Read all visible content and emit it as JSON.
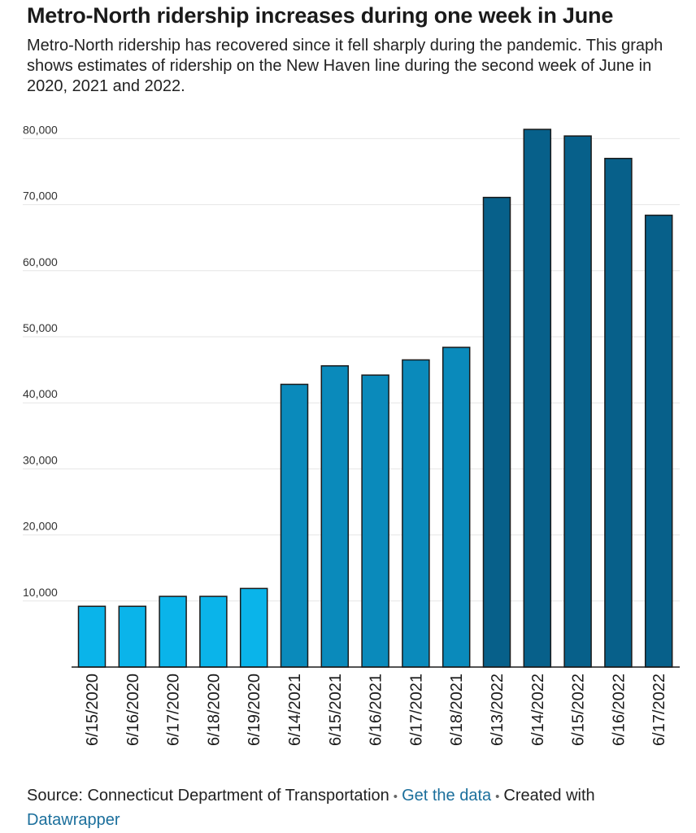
{
  "header": {
    "title": "Metro-North ridership increases during one week in June",
    "subtitle": "Metro-North ridership has recovered since it fell sharply during the pandemic. This graph shows estimates of ridership on the New Haven line during the second week of June in 2020, 2021 and 2022."
  },
  "colors": {
    "bar_2020": "#0ab4ea",
    "bar_2021": "#0a8abb",
    "bar_2022": "#07608a",
    "link": "#1b6f9c"
  },
  "chart_data": {
    "type": "bar",
    "title": "Metro-North ridership increases during one week in June",
    "xlabel": "",
    "ylabel": "",
    "ylim": [
      0,
      82000
    ],
    "yticks": [
      10000,
      20000,
      30000,
      40000,
      50000,
      60000,
      70000,
      80000
    ],
    "ytick_labels": [
      "10,000",
      "20,000",
      "30,000",
      "40,000",
      "50,000",
      "60,000",
      "70,000",
      "80,000"
    ],
    "grid": true,
    "categories": [
      "6/15/2020",
      "6/16/2020",
      "6/17/2020",
      "6/18/2020",
      "6/19/2020",
      "6/14/2021",
      "6/15/2021",
      "6/16/2021",
      "6/17/2021",
      "6/18/2021",
      "6/13/2022",
      "6/14/2022",
      "6/15/2022",
      "6/16/2022",
      "6/17/2022"
    ],
    "values": [
      9200,
      9200,
      10700,
      10700,
      11900,
      42800,
      45600,
      44200,
      46500,
      48400,
      71100,
      81400,
      80400,
      77000,
      68400
    ],
    "groups": [
      "2020",
      "2020",
      "2020",
      "2020",
      "2020",
      "2021",
      "2021",
      "2021",
      "2021",
      "2021",
      "2022",
      "2022",
      "2022",
      "2022",
      "2022"
    ]
  },
  "footer": {
    "source_text": "Source: Connecticut Department of Transportation",
    "separator": "•",
    "get_data_link": "Get the data",
    "created_with": "Created with",
    "datawrapper_link": "Datawrapper"
  }
}
